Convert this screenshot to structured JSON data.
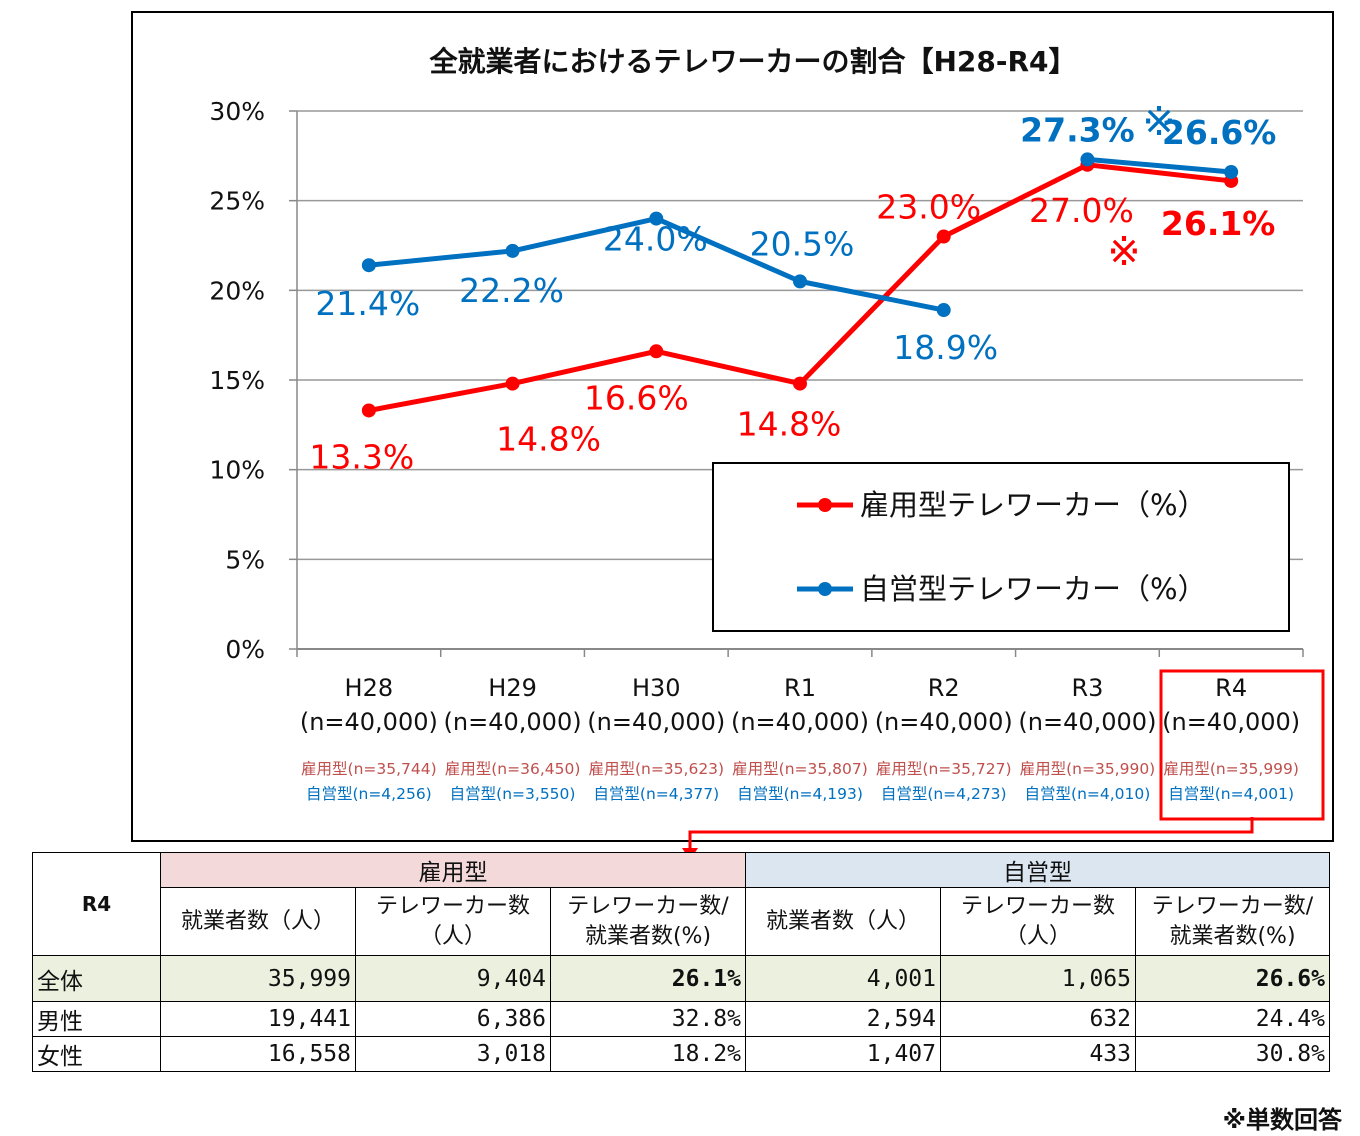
{
  "chart_data": {
    "type": "line",
    "title": "全就業者におけるテレワーカーの割合【H28-R4】",
    "ylim": [
      0,
      30
    ],
    "y_ticks": [
      "0%",
      "5%",
      "10%",
      "15%",
      "20%",
      "25%",
      "30%"
    ],
    "y_tick_values": [
      0,
      5,
      10,
      15,
      20,
      25,
      30
    ],
    "grid": true,
    "legend_position": "bottom-right",
    "categories": [
      "H28",
      "H29",
      "H30",
      "R1",
      "R2",
      "R3",
      "R4"
    ],
    "category_n": [
      "(n=40,000)",
      "(n=40,000)",
      "(n=40,000)",
      "(n=40,000)",
      "(n=40,000)",
      "(n=40,000)",
      "(n=40,000)"
    ],
    "sub_n_employed": [
      "雇用型(n=35,744)",
      "雇用型(n=36,450)",
      "雇用型(n=35,623)",
      "雇用型(n=35,807)",
      "雇用型(n=35,727)",
      "雇用型(n=35,990)",
      "雇用型(n=35,999)"
    ],
    "sub_n_self": [
      "自営型(n=4,256)",
      "自営型(n=3,550)",
      "自営型(n=4,377)",
      "自営型(n=4,193)",
      "自営型(n=4,273)",
      "自営型(n=4,010)",
      "自営型(n=4,001)"
    ],
    "series": [
      {
        "name": "雇用型テレワーカー（%）",
        "color": "#ff0000",
        "segments": [
          [
            0,
            1,
            2,
            3,
            4,
            5,
            6
          ]
        ],
        "values": [
          13.3,
          14.8,
          16.6,
          14.8,
          23.0,
          27.0,
          26.1
        ],
        "labels": [
          "13.3%",
          "14.8%",
          "16.6%",
          "14.8%",
          "23.0%",
          "27.0%",
          "26.1%"
        ]
      },
      {
        "name": "自営型テレワーカー（%）",
        "color": "#0070c0",
        "segments": [
          [
            0,
            1,
            2,
            3,
            4
          ],
          [
            5,
            6
          ]
        ],
        "values": [
          21.4,
          22.2,
          24.0,
          20.5,
          18.9,
          27.3,
          26.6
        ],
        "labels": [
          "21.4%",
          "22.2%",
          "24.0%",
          "20.5%",
          "18.9%",
          "27.3%",
          "26.6%"
        ]
      }
    ],
    "annotation_mark": "※"
  },
  "table": {
    "corner": "R4",
    "group_employed": "雇用型",
    "group_self": "自営型",
    "col_workers": "就業者数（人）",
    "col_teleworkers_1": "テレワーカー数",
    "col_teleworkers_2": "（人）",
    "col_ratio_1": "テレワーカー数/",
    "col_ratio_2": "就業者数(%)",
    "rows": [
      {
        "label": "全体",
        "e_workers": "35,999",
        "e_tele": "9,404",
        "e_ratio": "26.1%",
        "s_workers": "4,001",
        "s_tele": "1,065",
        "s_ratio": "26.6%"
      },
      {
        "label": "男性",
        "e_workers": "19,441",
        "e_tele": "6,386",
        "e_ratio": "32.8%",
        "s_workers": "2,594",
        "s_tele": "632",
        "s_ratio": "24.4%"
      },
      {
        "label": "女性",
        "e_workers": "16,558",
        "e_tele": "3,018",
        "e_ratio": "18.2%",
        "s_workers": "1,407",
        "s_tele": "433",
        "s_ratio": "30.8%"
      }
    ]
  },
  "footnote": "※単数回答",
  "colors": {
    "employed": "#ff0000",
    "self": "#0070c0",
    "highlight": "#ff0000"
  }
}
